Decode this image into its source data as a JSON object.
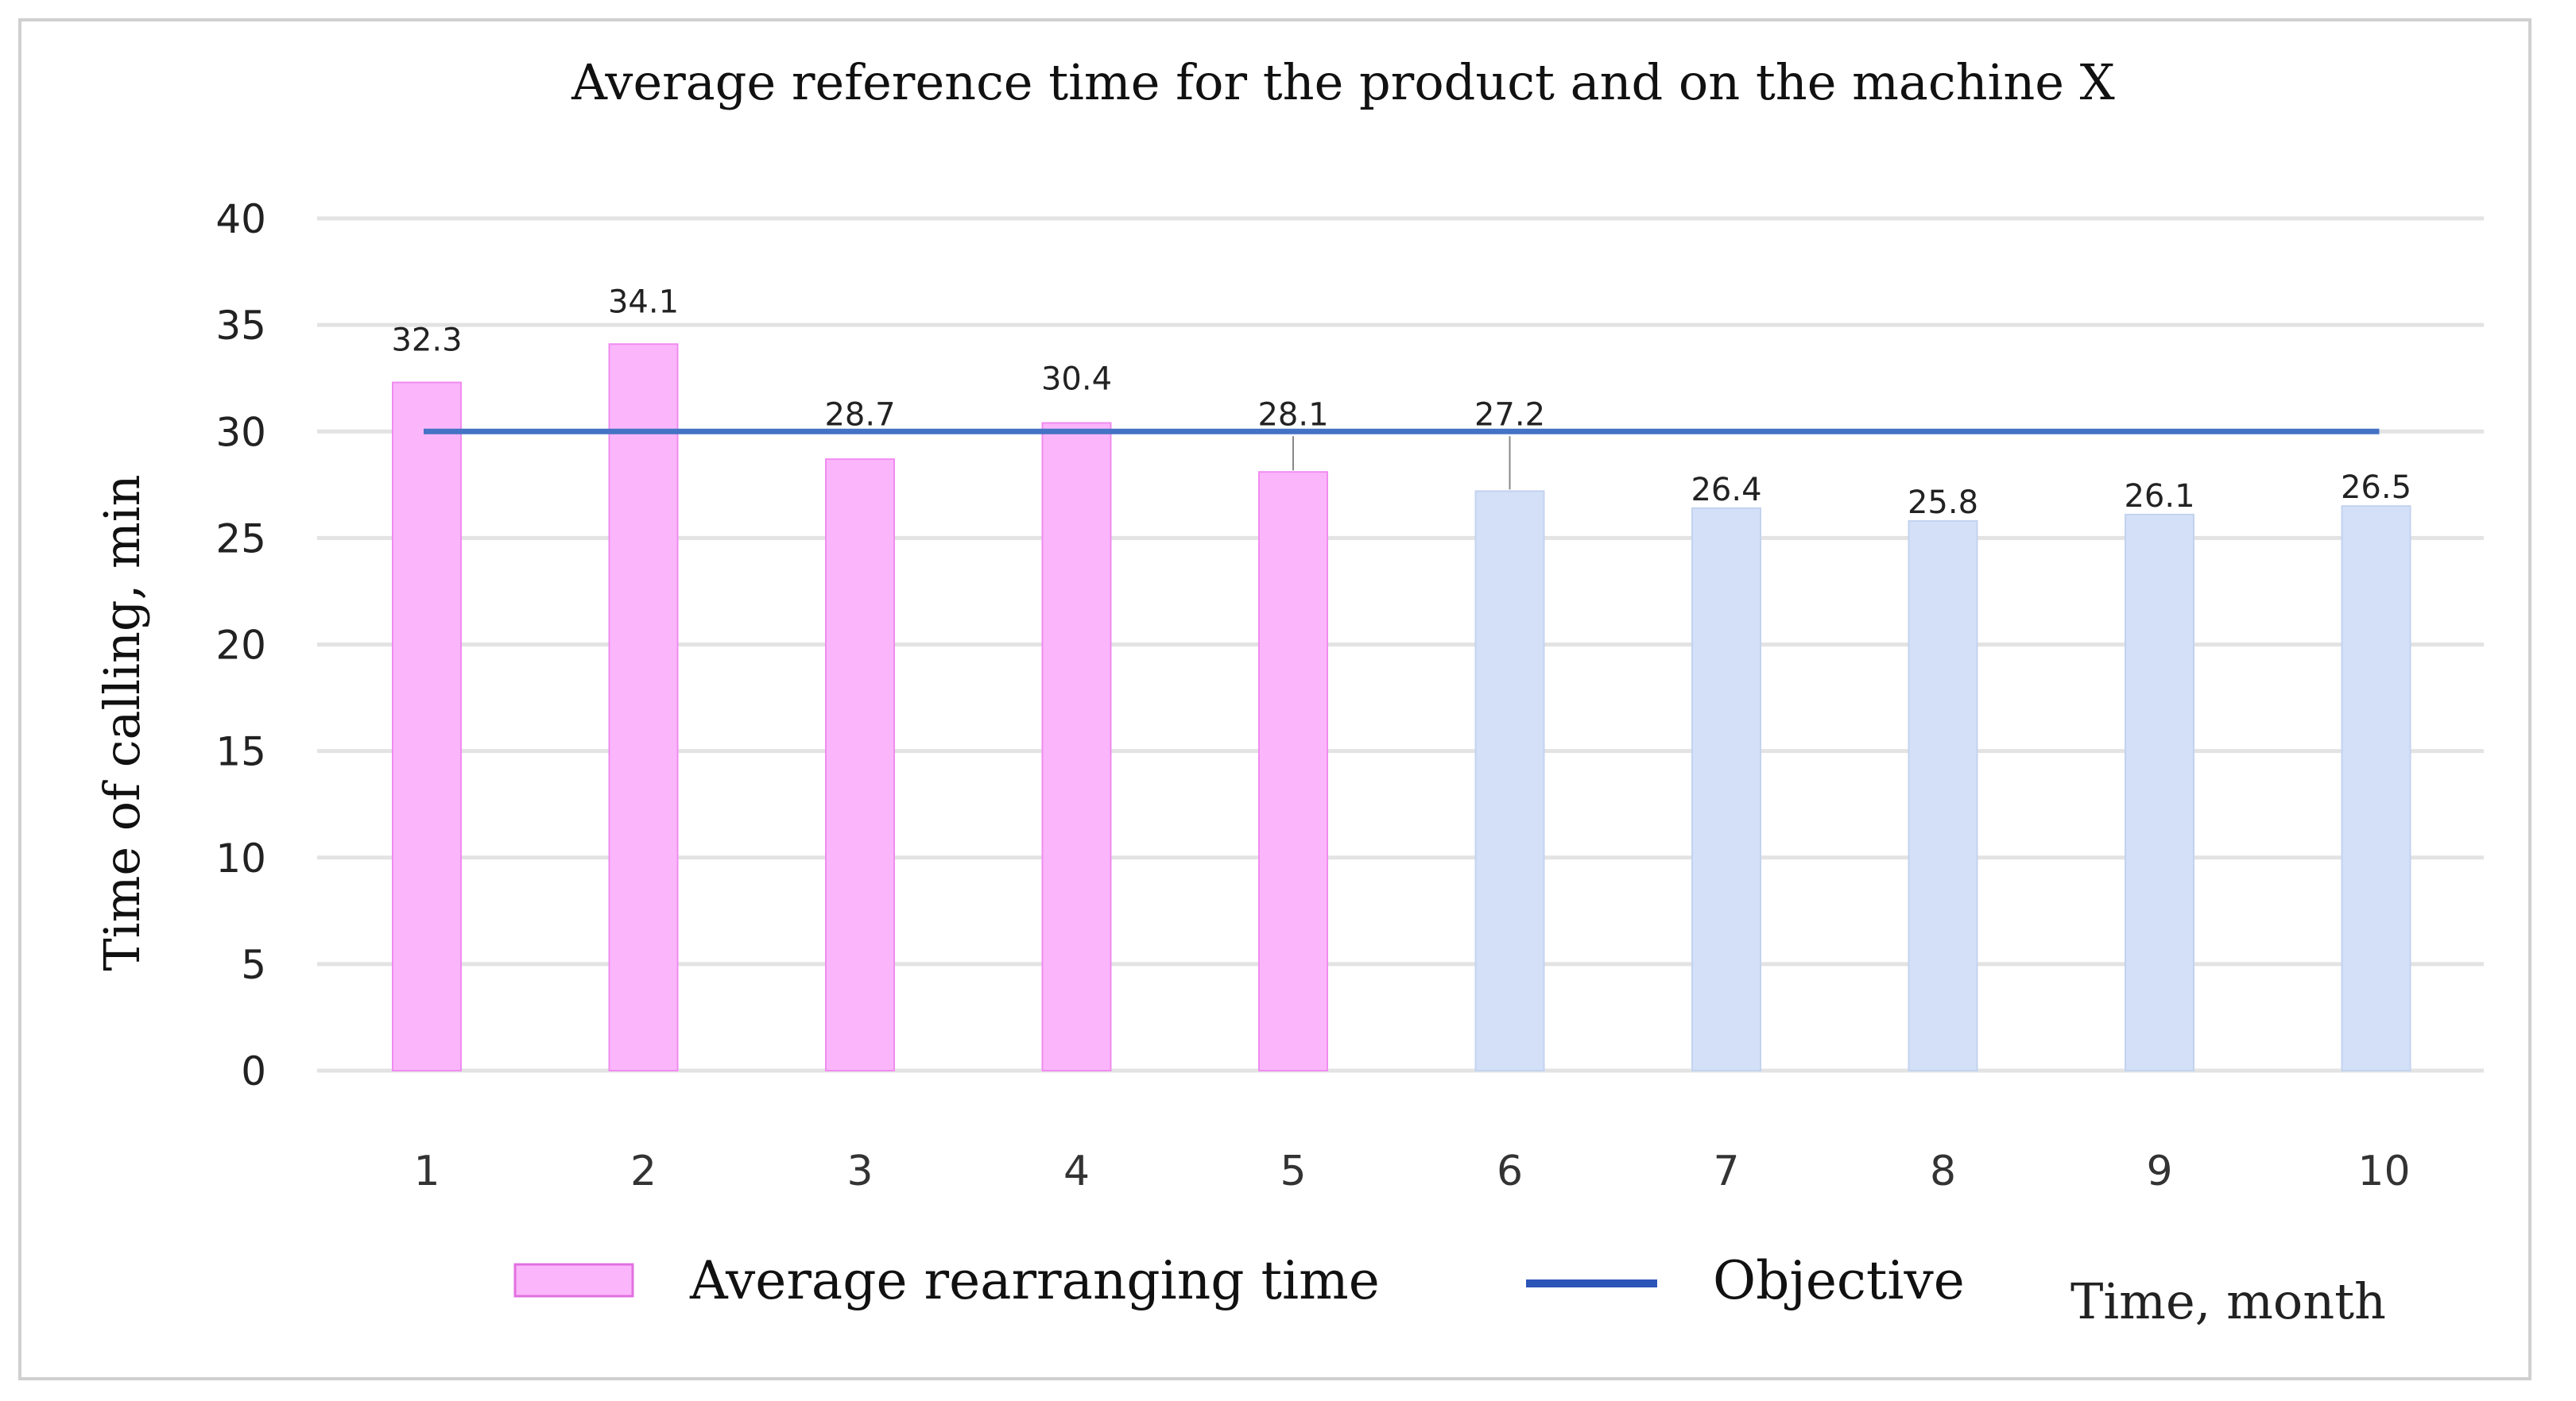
{
  "chart_data": {
    "type": "bar",
    "title": "Average reference time for the product and on the machine X",
    "xlabel": "Time, month",
    "ylabel": "Time of calling, min",
    "categories": [
      "1",
      "2",
      "3",
      "4",
      "5",
      "6",
      "7",
      "8",
      "9",
      "10"
    ],
    "series": [
      {
        "name": "Average rearranging time",
        "type": "bar",
        "values": [
          32.3,
          34.1,
          28.7,
          30.4,
          28.1,
          27.2,
          26.4,
          25.8,
          26.1,
          26.5
        ]
      },
      {
        "name": "Objective",
        "type": "line",
        "values": [
          30,
          30,
          30,
          30,
          30,
          30,
          30,
          30,
          30,
          30
        ]
      }
    ],
    "data_labels": [
      "32.3",
      "34.1",
      "28.7",
      "30.4",
      "28.1",
      "27.2",
      "26.4",
      "25.8",
      "26.1",
      "26.5"
    ],
    "bar_colors": [
      "#fbb6fb",
      "#fbb6fb",
      "#fbb6fb",
      "#fbb6fb",
      "#fbb6fb",
      "#d3e0f7",
      "#d3e0f7",
      "#d3e0f7",
      "#d3e0f7",
      "#d3e0f7"
    ],
    "objective_color": "#4472c4",
    "ylim": [
      0,
      40
    ],
    "yticks": [
      "0",
      "5",
      "10",
      "15",
      "20",
      "25",
      "30",
      "35",
      "40"
    ],
    "grid": true,
    "legend_position": "bottom"
  }
}
